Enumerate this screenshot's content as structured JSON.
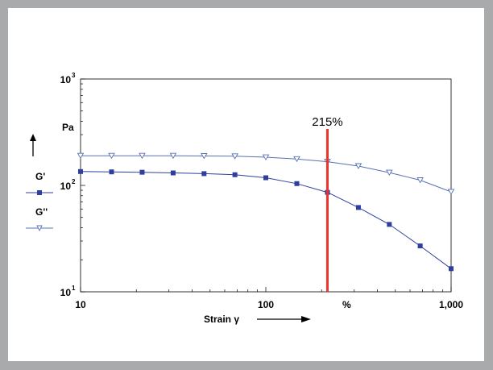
{
  "chart_data": {
    "type": "line",
    "x_scale": "log",
    "y_scale": "log",
    "xlim": [
      10,
      1000
    ],
    "ylim": [
      10,
      1000
    ],
    "grid": false,
    "xlabel": "Strain γ",
    "ylabel": "Pa",
    "x_unit": "%",
    "x_ticks": [
      {
        "value": 10,
        "label": "10"
      },
      {
        "value": 100,
        "label": "100"
      },
      {
        "value": 1000,
        "label": "1,000"
      }
    ],
    "y_ticks": [
      {
        "value": 10,
        "base": "10",
        "exp": "1"
      },
      {
        "value": 100,
        "base": "10",
        "exp": "2"
      },
      {
        "value": 1000,
        "base": "10",
        "exp": "3"
      }
    ],
    "series": [
      {
        "name": "G'",
        "marker": "square",
        "color": "#2e3f9e",
        "x": [
          10,
          14.7,
          21.5,
          31.6,
          46.4,
          68.1,
          100,
          147,
          215,
          316,
          464,
          681,
          1000
        ],
        "y": [
          135,
          134,
          133,
          131,
          129,
          126,
          118,
          104,
          86,
          62,
          43,
          27,
          16.5
        ]
      },
      {
        "name": "G''",
        "marker": "triangle-down",
        "color": "#5870b5",
        "x": [
          10,
          14.7,
          21.5,
          31.6,
          46.4,
          68.1,
          100,
          147,
          215,
          316,
          464,
          681,
          1000
        ],
        "y": [
          190,
          190,
          190,
          190,
          189,
          188,
          184,
          177,
          167,
          152,
          132,
          112,
          87
        ]
      }
    ],
    "annotations": [
      {
        "type": "vline",
        "x": 215,
        "label": "215%",
        "color": "#e8342a"
      }
    ],
    "legend_placement": "left"
  }
}
